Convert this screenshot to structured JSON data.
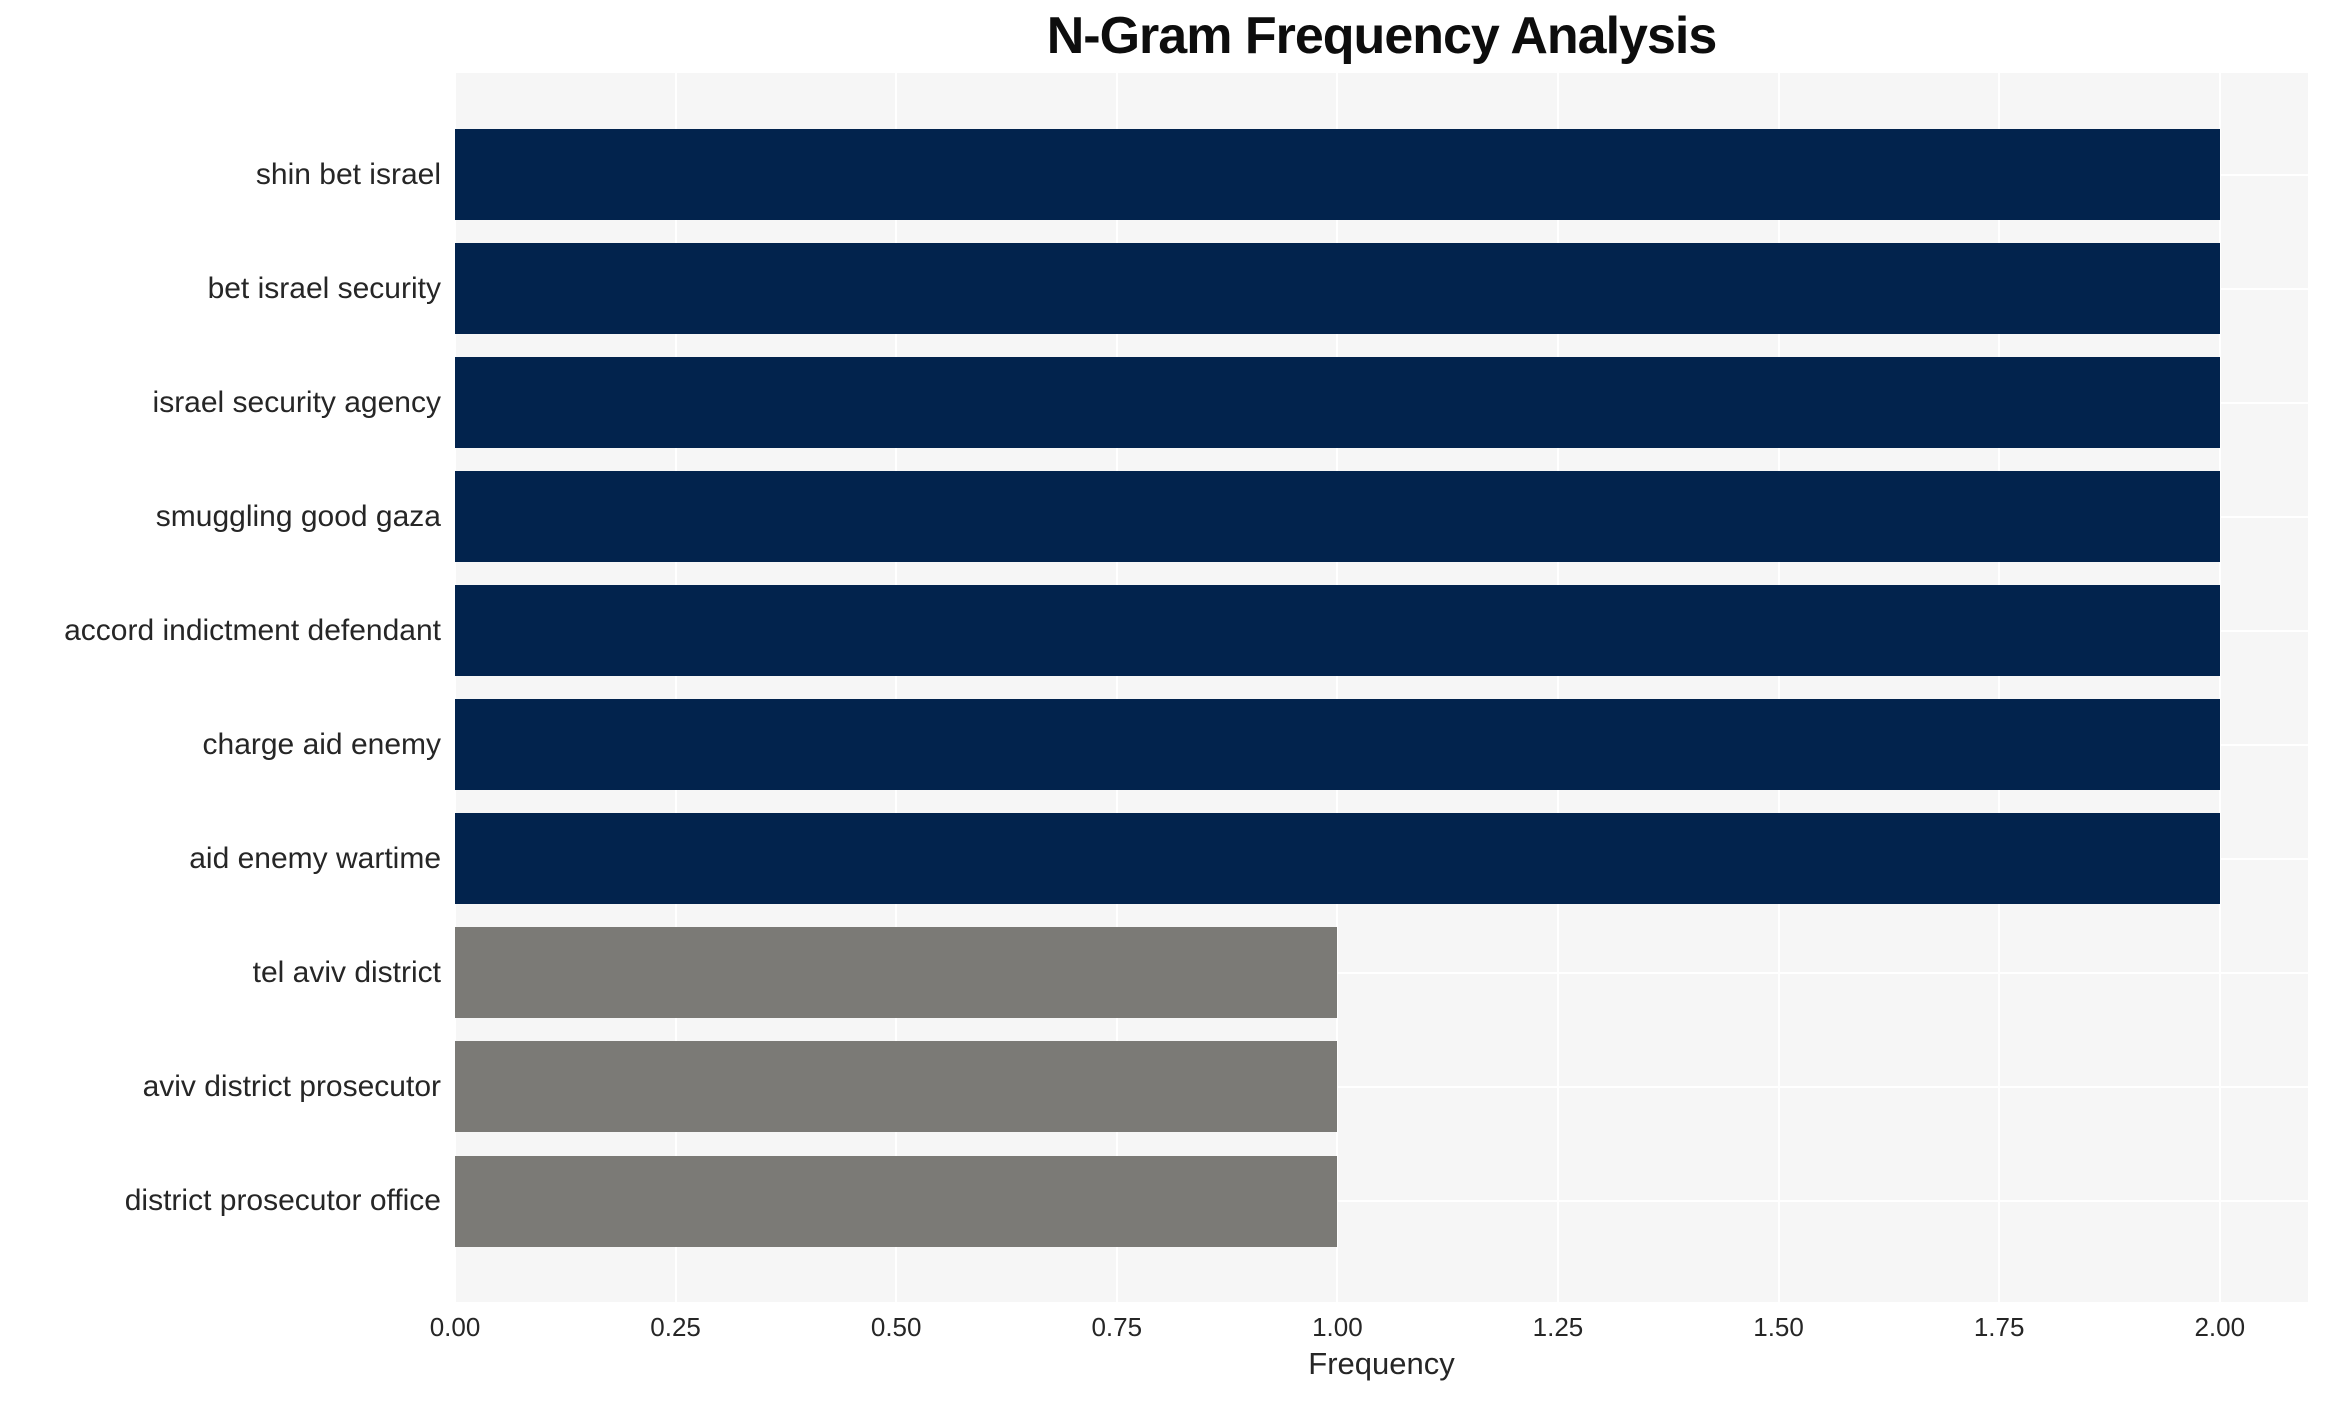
{
  "chart_data": {
    "type": "bar",
    "orientation": "horizontal",
    "title": "N-Gram Frequency Analysis",
    "xlabel": "Frequency",
    "ylabel": "",
    "categories": [
      "shin bet israel",
      "bet israel security",
      "israel security agency",
      "smuggling good gaza",
      "accord indictment defendant",
      "charge aid enemy",
      "aid enemy wartime",
      "tel aviv district",
      "aviv district prosecutor",
      "district prosecutor office"
    ],
    "values": [
      2,
      2,
      2,
      2,
      2,
      2,
      2,
      1,
      1,
      1
    ],
    "bar_colors": [
      "#02234d",
      "#02234d",
      "#02234d",
      "#02234d",
      "#02234d",
      "#02234d",
      "#02234d",
      "#7b7a76",
      "#7b7a76",
      "#7b7a76"
    ],
    "xlim": [
      0,
      2.1
    ],
    "xticks": [
      0,
      0.25,
      0.5,
      0.75,
      1.0,
      1.25,
      1.5,
      1.75,
      2.0
    ],
    "xtick_labels": [
      "0.00",
      "0.25",
      "0.50",
      "0.75",
      "1.00",
      "1.25",
      "1.50",
      "1.75",
      "2.00"
    ],
    "grid": true,
    "legend": false,
    "colors": {
      "high_frequency_bar": "#02234d",
      "low_frequency_bar": "#7b7a76",
      "plot_background": "#f6f6f6",
      "gridline": "#ffffff",
      "text": "#262626"
    }
  }
}
